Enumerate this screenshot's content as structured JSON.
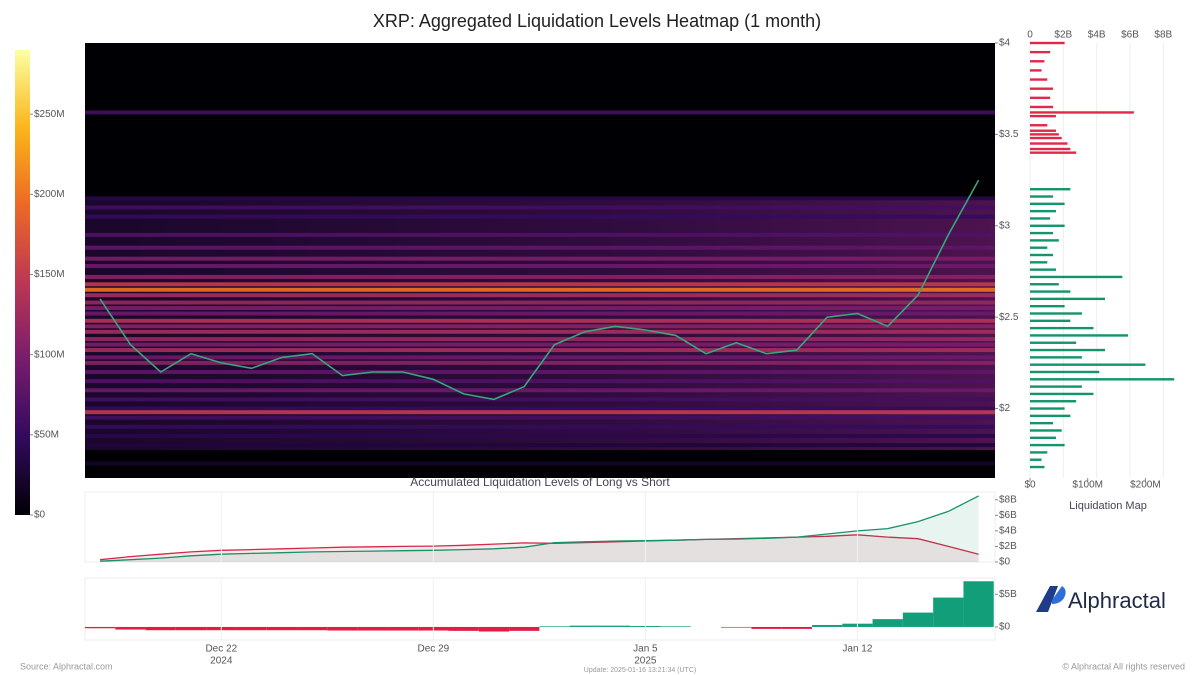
{
  "source": "Source: Alphractal.com",
  "update": "Update: 2025-01-16 13:21:34 (UTC)",
  "copyright": "© Alphractal All rights reserved",
  "brand": "Alphractal",
  "chart_data": [
    {
      "type": "heatmap",
      "title": "XRP: Aggregated Liquidation Levels Heatmap (1 month)",
      "x": [
        "2024-12-18",
        "2024-12-19",
        "2024-12-20",
        "2024-12-21",
        "2024-12-22",
        "2024-12-23",
        "2024-12-24",
        "2024-12-25",
        "2024-12-26",
        "2024-12-27",
        "2024-12-28",
        "2024-12-29",
        "2024-12-30",
        "2024-12-31",
        "2025-01-01",
        "2025-01-02",
        "2025-01-03",
        "2025-01-04",
        "2025-01-05",
        "2025-01-06",
        "2025-01-07",
        "2025-01-08",
        "2025-01-09",
        "2025-01-10",
        "2025-01-11",
        "2025-01-12",
        "2025-01-13",
        "2025-01-14",
        "2025-01-15",
        "2025-01-16"
      ],
      "values": [
        2.6,
        2.35,
        2.2,
        2.3,
        2.25,
        2.22,
        2.28,
        2.3,
        2.18,
        2.2,
        2.2,
        2.16,
        2.08,
        2.05,
        2.12,
        2.35,
        2.42,
        2.45,
        2.43,
        2.4,
        2.3,
        2.36,
        2.3,
        2.32,
        2.5,
        2.52,
        2.45,
        2.62,
        2.95,
        3.25
      ],
      "color": "#3aa57a",
      "xlim": [
        "2024-12-17T12:00:00Z",
        "2025-01-16T13:00:00Z"
      ],
      "ylim": [
        1.62,
        4
      ],
      "yticks": [
        {
          "value": 2,
          "label": "$2"
        },
        {
          "value": 2.5,
          "label": "$2.5"
        },
        {
          "value": 3,
          "label": "$3"
        },
        {
          "value": 3.5,
          "label": "$3.5"
        },
        {
          "value": 4,
          "label": "$4"
        }
      ],
      "levels": {
        "prices": [
          3.62,
          3.15,
          3.1,
          3.05,
          2.95,
          2.88,
          2.82,
          2.78,
          2.72,
          2.68,
          2.65,
          2.62,
          2.58,
          2.55,
          2.52,
          2.48,
          2.45,
          2.42,
          2.38,
          2.35,
          2.32,
          2.28,
          2.25,
          2.2,
          2.15,
          2.1,
          2.05,
          2.0,
          1.98,
          1.95,
          1.9,
          1.85,
          1.8,
          1.7
        ],
        "values": [
          60000000,
          40000000,
          60000000,
          50000000,
          70000000,
          80000000,
          100000000,
          90000000,
          110000000,
          150000000,
          200000000,
          130000000,
          120000000,
          100000000,
          90000000,
          140000000,
          110000000,
          130000000,
          120000000,
          100000000,
          130000000,
          90000000,
          110000000,
          80000000,
          70000000,
          90000000,
          60000000,
          50000000,
          150000000,
          60000000,
          50000000,
          40000000,
          30000000,
          20000000
        ]
      },
      "colormap": [
        "#000004",
        "#320a5e",
        "#781c6d",
        "#bc3754",
        "#ed6925",
        "#fbb61a",
        "#fcffa4"
      ],
      "clim": [
        0,
        290000000
      ],
      "cticks": [
        {
          "value": 0,
          "label": "$0"
        },
        {
          "value": 50000000,
          "label": "$50M"
        },
        {
          "value": 100000000,
          "label": "$100M"
        },
        {
          "value": 150000000,
          "label": "$150M"
        },
        {
          "value": 200000000,
          "label": "$200M"
        },
        {
          "value": 250000000,
          "label": "$250M"
        }
      ]
    },
    {
      "type": "hbar",
      "title": "Liquidation Map",
      "series": [
        {
          "color": "#e0284a",
          "y": [
            3.4,
            3.42,
            3.45,
            3.48,
            3.5,
            3.52,
            3.55,
            3.6,
            3.62,
            3.65,
            3.7,
            3.75,
            3.8,
            3.85,
            3.9,
            3.95,
            4.0
          ],
          "values": [
            80000000,
            70000000,
            65000000,
            55000000,
            50000000,
            45000000,
            30000000,
            45000000,
            180000000,
            40000000,
            35000000,
            40000000,
            30000000,
            20000000,
            25000000,
            35000000,
            60000000
          ]
        },
        {
          "color": "#13946a",
          "y": [
            3.2,
            3.16,
            3.12,
            3.08,
            3.04,
            3.0,
            2.96,
            2.92,
            2.88,
            2.84,
            2.8,
            2.76,
            2.72,
            2.68,
            2.64,
            2.6,
            2.56,
            2.52,
            2.48,
            2.44,
            2.4,
            2.36,
            2.32,
            2.28,
            2.24,
            2.2,
            2.16,
            2.12,
            2.08,
            2.04,
            2.0,
            1.96,
            1.92,
            1.88,
            1.84,
            1.8,
            1.76,
            1.72,
            1.68
          ],
          "values": [
            70000000,
            40000000,
            60000000,
            45000000,
            35000000,
            60000000,
            40000000,
            50000000,
            30000000,
            40000000,
            30000000,
            45000000,
            160000000,
            50000000,
            70000000,
            130000000,
            60000000,
            90000000,
            70000000,
            110000000,
            170000000,
            80000000,
            130000000,
            90000000,
            200000000,
            120000000,
            250000000,
            90000000,
            110000000,
            80000000,
            60000000,
            70000000,
            40000000,
            55000000,
            45000000,
            60000000,
            30000000,
            20000000,
            25000000
          ]
        }
      ],
      "ylim": [
        1.62,
        4
      ],
      "xlim": [
        0,
        260000000
      ],
      "xticks": [
        {
          "value": 0,
          "label": "$0"
        },
        {
          "value": 100000000,
          "label": "$100M"
        },
        {
          "value": 200000000,
          "label": "$200M"
        }
      ],
      "x2lim": [
        0,
        9000000000
      ],
      "x2ticks": [
        {
          "value": 0,
          "label": "0"
        },
        {
          "value": 2000000000,
          "label": "$2B"
        },
        {
          "value": 4000000000,
          "label": "$4B"
        },
        {
          "value": 6000000000,
          "label": "$6B"
        },
        {
          "value": 8000000000,
          "label": "$8B"
        }
      ]
    },
    {
      "type": "line",
      "title": "Accumulated Liquidation Levels of Long vs Short",
      "x": [
        "2024-12-18",
        "2024-12-19",
        "2024-12-20",
        "2024-12-21",
        "2024-12-22",
        "2024-12-23",
        "2024-12-24",
        "2024-12-25",
        "2024-12-26",
        "2024-12-27",
        "2024-12-28",
        "2024-12-29",
        "2024-12-30",
        "2024-12-31",
        "2025-01-01",
        "2025-01-02",
        "2025-01-03",
        "2025-01-04",
        "2025-01-05",
        "2025-01-06",
        "2025-01-07",
        "2025-01-08",
        "2025-01-09",
        "2025-01-10",
        "2025-01-11",
        "2025-01-12",
        "2025-01-13",
        "2025-01-14",
        "2025-01-15",
        "2025-01-16"
      ],
      "series": [
        {
          "color": "#d42a48",
          "values": [
            300000000,
            700000000,
            1000000000,
            1300000000,
            1500000000,
            1600000000,
            1700000000,
            1800000000,
            1900000000,
            1950000000,
            2000000000,
            2050000000,
            2150000000,
            2300000000,
            2450000000,
            2400000000,
            2500000000,
            2600000000,
            2700000000,
            2800000000,
            2900000000,
            3000000000,
            3100000000,
            3200000000,
            3300000000,
            3500000000,
            3200000000,
            3000000000,
            2000000000,
            1000000000
          ]
        },
        {
          "color": "#17936a",
          "values": [
            100000000,
            300000000,
            500000000,
            800000000,
            1000000000,
            1100000000,
            1200000000,
            1300000000,
            1350000000,
            1400000000,
            1450000000,
            1500000000,
            1600000000,
            1700000000,
            1900000000,
            2500000000,
            2600000000,
            2700000000,
            2750000000,
            2800000000,
            2900000000,
            2950000000,
            3050000000,
            3200000000,
            3600000000,
            4000000000,
            4300000000,
            5200000000,
            6500000000,
            8500000000
          ]
        }
      ],
      "xlim": [
        "2024-12-17T12:00:00Z",
        "2025-01-16T13:00:00Z"
      ],
      "ylim": [
        0,
        9000000000
      ],
      "yticks": [
        {
          "value": 0,
          "label": "$0"
        },
        {
          "value": 2000000000,
          "label": "$2B"
        },
        {
          "value": 4000000000,
          "label": "$4B"
        },
        {
          "value": 6000000000,
          "label": "$6B"
        },
        {
          "value": 8000000000,
          "label": "$8B"
        }
      ]
    },
    {
      "type": "bar",
      "x": [
        "2024-12-18",
        "2024-12-19",
        "2024-12-20",
        "2024-12-21",
        "2024-12-22",
        "2024-12-23",
        "2024-12-24",
        "2024-12-25",
        "2024-12-26",
        "2024-12-27",
        "2024-12-28",
        "2024-12-29",
        "2024-12-30",
        "2024-12-31",
        "2025-01-01",
        "2025-01-02",
        "2025-01-03",
        "2025-01-04",
        "2025-01-05",
        "2025-01-06",
        "2025-01-07",
        "2025-01-08",
        "2025-01-09",
        "2025-01-10",
        "2025-01-11",
        "2025-01-12",
        "2025-01-13",
        "2025-01-14",
        "2025-01-15",
        "2025-01-16"
      ],
      "values": [
        -200000000,
        -400000000,
        -500000000,
        -500000000,
        -500000000,
        -500000000,
        -500000000,
        -500000000,
        -550000000,
        -550000000,
        -550000000,
        -550000000,
        -600000000,
        -700000000,
        -600000000,
        100000000,
        200000000,
        200000000,
        150000000,
        100000000,
        0,
        -100000000,
        -300000000,
        -300000000,
        300000000,
        500000000,
        1200000000,
        2200000000,
        4500000000,
        7000000000
      ],
      "color": "#139e7a",
      "negative_color": "#e21c45",
      "xlim": [
        "2024-12-17T12:00:00Z",
        "2025-01-16T13:00:00Z"
      ],
      "ylim": [
        -2000000000,
        7500000000
      ],
      "yticks": [
        {
          "value": 0,
          "label": "$0"
        },
        {
          "value": 5000000000,
          "label": "$5B"
        }
      ],
      "xticks": [
        {
          "value": "2024-12-22T00:00:00Z",
          "label": "Dec 22",
          "sublabel": "2024"
        },
        {
          "value": "2024-12-29T00:00:00Z",
          "label": "Dec 29"
        },
        {
          "value": "2025-01-05T00:00:00Z",
          "label": "Jan 5",
          "sublabel": "2025"
        },
        {
          "value": "2025-01-12T00:00:00Z",
          "label": "Jan 12"
        }
      ]
    }
  ]
}
